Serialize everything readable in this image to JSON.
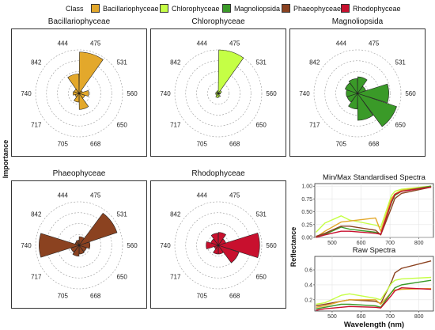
{
  "legend": {
    "title": "Class",
    "items": [
      {
        "label": "Bacillariophyceae",
        "color": "#E3A82B"
      },
      {
        "label": "Chlorophyceae",
        "color": "#C5FF45"
      },
      {
        "label": "Magnoliopsida",
        "color": "#3A9A28"
      },
      {
        "label": "Phaeophyceae",
        "color": "#8B4220"
      },
      {
        "label": "Rhodophyceae",
        "color": "#C8102E"
      }
    ]
  },
  "y_axis_label": "Importance",
  "chart_data": [
    {
      "type": "radial-bar",
      "title": "Bacillariophyceae",
      "color": "#E3A82B",
      "categories": [
        "444",
        "475",
        "531",
        "560",
        "650",
        "668",
        "705",
        "717",
        "740",
        "842"
      ],
      "values": [
        0.45,
        0.95,
        0.08,
        0.22,
        0.14,
        0.37,
        0.2,
        0.1,
        0.14,
        0.12
      ]
    },
    {
      "type": "radial-bar",
      "title": "Chlorophyceae",
      "color": "#C5FF45",
      "categories": [
        "444",
        "475",
        "531",
        "560",
        "650",
        "668",
        "705",
        "717",
        "740",
        "842"
      ],
      "values": [
        0.06,
        1.0,
        0.08,
        0.05,
        0.03,
        0.08,
        0.1,
        0.06,
        0.06,
        0.05
      ]
    },
    {
      "type": "radial-bar",
      "title": "Magnoliopsida",
      "color": "#3A9A28",
      "categories": [
        "444",
        "475",
        "531",
        "560",
        "650",
        "668",
        "705",
        "717",
        "740",
        "842"
      ],
      "values": [
        0.34,
        0.38,
        0.2,
        0.72,
        0.95,
        0.62,
        0.36,
        0.25,
        0.26,
        0.3
      ]
    },
    {
      "type": "radial-bar",
      "title": "Phaeophyceae",
      "color": "#8B4220",
      "categories": [
        "444",
        "475",
        "531",
        "560",
        "650",
        "668",
        "705",
        "717",
        "740",
        "842"
      ],
      "values": [
        0.12,
        0.2,
        0.92,
        0.25,
        0.18,
        0.2,
        0.25,
        0.2,
        0.92,
        0.1
      ]
    },
    {
      "type": "radial-bar",
      "title": "Rhodophyceae",
      "color": "#C8102E",
      "categories": [
        "444",
        "475",
        "531",
        "560",
        "650",
        "668",
        "705",
        "717",
        "740",
        "842"
      ],
      "values": [
        0.28,
        0.3,
        0.18,
        0.95,
        0.5,
        0.2,
        0.2,
        0.1,
        0.28,
        0.18
      ]
    },
    {
      "type": "line",
      "title": "Min/Max Standardised Spectra",
      "ylabel": "Reflectance",
      "x": [
        444,
        475,
        531,
        560,
        650,
        668,
        705,
        717,
        740,
        842
      ],
      "yticks": [
        0.0,
        0.25,
        0.5,
        0.75,
        1.0
      ],
      "ylim": [
        0,
        1.05
      ],
      "xticks": [
        500,
        600,
        700,
        800
      ],
      "xlim": [
        440,
        850
      ],
      "series": [
        {
          "class": "Chlorophyceae",
          "color": "#C5FF45",
          "values": [
            0.1,
            0.28,
            0.42,
            0.34,
            0.24,
            0.2,
            0.82,
            0.9,
            0.94,
            1.0
          ]
        },
        {
          "class": "Bacillariophyceae",
          "color": "#E3A82B",
          "values": [
            0.0,
            0.12,
            0.3,
            0.32,
            0.38,
            0.12,
            0.76,
            0.85,
            0.92,
            1.0
          ]
        },
        {
          "class": "Magnoliopsida",
          "color": "#3A9A28",
          "values": [
            0.0,
            0.06,
            0.2,
            0.16,
            0.1,
            0.06,
            0.68,
            0.82,
            0.9,
            1.0
          ]
        },
        {
          "class": "Phaeophyceae",
          "color": "#8B4220",
          "values": [
            0.02,
            0.08,
            0.22,
            0.22,
            0.14,
            0.05,
            0.58,
            0.76,
            0.86,
            0.98
          ]
        },
        {
          "class": "Rhodophyceae",
          "color": "#C8102E",
          "values": [
            0.0,
            0.05,
            0.12,
            0.12,
            0.08,
            0.06,
            0.7,
            0.84,
            0.9,
            0.98
          ]
        }
      ]
    },
    {
      "type": "line",
      "title": "Raw Spectra",
      "xlabel": "Wavelength (nm)",
      "x": [
        444,
        475,
        531,
        560,
        650,
        668,
        705,
        717,
        740,
        842
      ],
      "yticks": [
        0.2,
        0.4,
        0.6
      ],
      "ylim": [
        0.05,
        0.78
      ],
      "xticks": [
        500,
        600,
        700,
        800
      ],
      "xlim": [
        440,
        850
      ],
      "series": [
        {
          "class": "Phaeophyceae",
          "color": "#8B4220",
          "values": [
            0.12,
            0.14,
            0.18,
            0.2,
            0.18,
            0.15,
            0.44,
            0.56,
            0.62,
            0.72
          ]
        },
        {
          "class": "Chlorophyceae",
          "color": "#C5FF45",
          "values": [
            0.14,
            0.16,
            0.26,
            0.28,
            0.22,
            0.2,
            0.42,
            0.46,
            0.48,
            0.5
          ]
        },
        {
          "class": "Bacillariophyceae",
          "color": "#E3A82B",
          "values": [
            0.1,
            0.12,
            0.18,
            0.2,
            0.2,
            0.14,
            0.3,
            0.33,
            0.34,
            0.35
          ]
        },
        {
          "class": "Magnoliopsida",
          "color": "#3A9A28",
          "values": [
            0.08,
            0.1,
            0.14,
            0.14,
            0.12,
            0.1,
            0.3,
            0.36,
            0.4,
            0.46
          ]
        },
        {
          "class": "Rhodophyceae",
          "color": "#C8102E",
          "values": [
            0.06,
            0.08,
            0.1,
            0.11,
            0.1,
            0.09,
            0.26,
            0.32,
            0.36,
            0.34
          ]
        }
      ]
    }
  ]
}
